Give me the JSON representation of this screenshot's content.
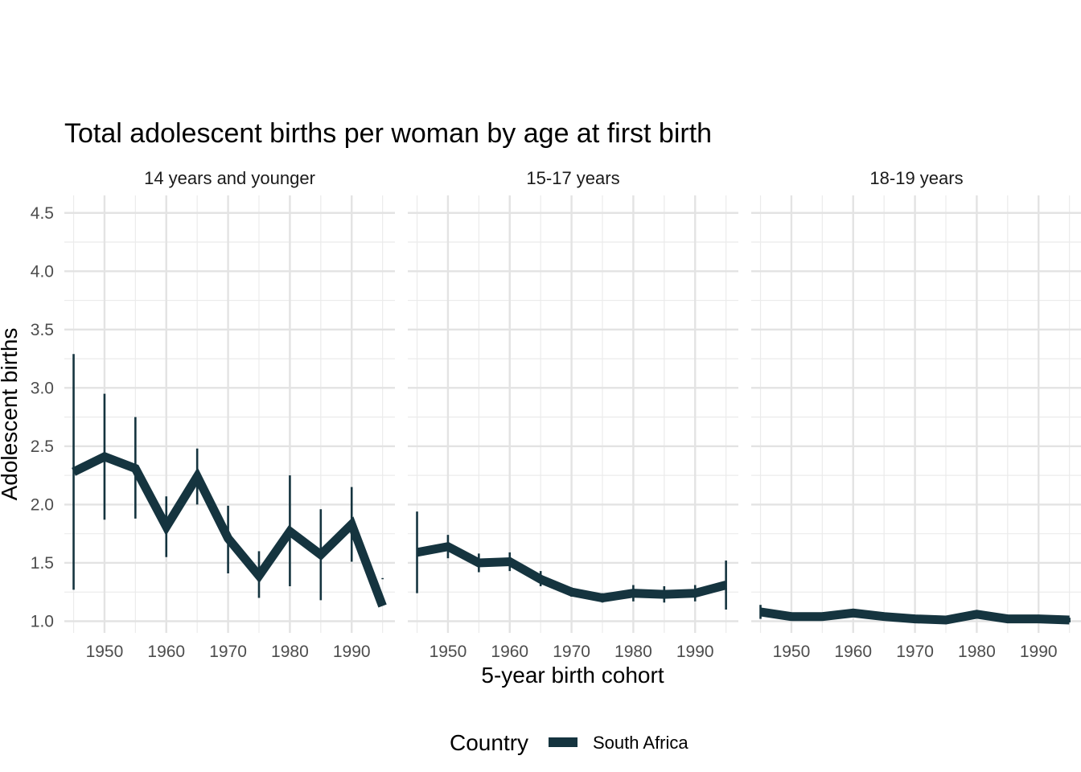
{
  "chart_data": {
    "type": "line",
    "title": "Total adolescent births per woman by age at first birth",
    "xlabel": "5-year birth cohort",
    "ylabel": "Adolescent births",
    "xlim": [
      1943.5,
      1997
    ],
    "ylim": [
      0.9,
      4.65
    ],
    "x_ticks": [
      1950,
      1960,
      1970,
      1980,
      1990
    ],
    "x_tick_labels": [
      "1950",
      "1960",
      "1970",
      "1980",
      "1990"
    ],
    "y_ticks": [
      1.0,
      1.5,
      2.0,
      2.5,
      3.0,
      3.5,
      4.0,
      4.5
    ],
    "y_tick_labels": [
      "1.0",
      "1.5",
      "2.0",
      "2.5",
      "3.0",
      "3.5",
      "4.0",
      "4.5"
    ],
    "grid": true,
    "legend": {
      "title": "Country",
      "position": "bottom",
      "entries": [
        {
          "label": "South Africa",
          "color": "#15343f"
        }
      ]
    },
    "series_color": "#15343f",
    "panels": [
      {
        "label": "14 years and younger",
        "x": [
          1945,
          1950,
          1955,
          1960,
          1965,
          1970,
          1975,
          1980,
          1985,
          1990,
          1995
        ],
        "values": [
          2.28,
          2.41,
          2.31,
          1.81,
          2.24,
          1.71,
          1.39,
          1.77,
          1.57,
          1.83,
          1.13
        ],
        "lower": [
          1.27,
          1.87,
          1.88,
          1.55,
          2.0,
          1.41,
          1.2,
          1.3,
          1.18,
          1.51,
          1.36
        ],
        "upper": [
          3.29,
          2.95,
          2.75,
          2.07,
          2.48,
          1.99,
          1.6,
          2.25,
          1.96,
          2.15,
          1.37
        ]
      },
      {
        "label": "15-17 years",
        "x": [
          1945,
          1950,
          1955,
          1960,
          1965,
          1970,
          1975,
          1980,
          1985,
          1990,
          1995
        ],
        "values": [
          1.59,
          1.64,
          1.5,
          1.51,
          1.36,
          1.25,
          1.2,
          1.24,
          1.23,
          1.24,
          1.31
        ],
        "lower": [
          1.24,
          1.54,
          1.42,
          1.43,
          1.3,
          1.21,
          1.16,
          1.17,
          1.16,
          1.17,
          1.1
        ],
        "upper": [
          1.94,
          1.74,
          1.58,
          1.59,
          1.43,
          1.29,
          1.24,
          1.31,
          1.3,
          1.31,
          1.52
        ]
      },
      {
        "label": "18-19 years",
        "x": [
          1945,
          1950,
          1955,
          1960,
          1965,
          1970,
          1975,
          1980,
          1985,
          1990,
          1995
        ],
        "values": [
          1.08,
          1.04,
          1.04,
          1.07,
          1.04,
          1.02,
          1.01,
          1.06,
          1.02,
          1.02,
          1.01
        ],
        "lower": [
          1.02,
          1.02,
          1.02,
          1.05,
          1.02,
          1.0,
          0.99,
          1.03,
          1.0,
          1.0,
          0.99
        ],
        "upper": [
          1.14,
          1.06,
          1.06,
          1.09,
          1.06,
          1.04,
          1.03,
          1.09,
          1.04,
          1.04,
          1.03
        ]
      }
    ]
  }
}
